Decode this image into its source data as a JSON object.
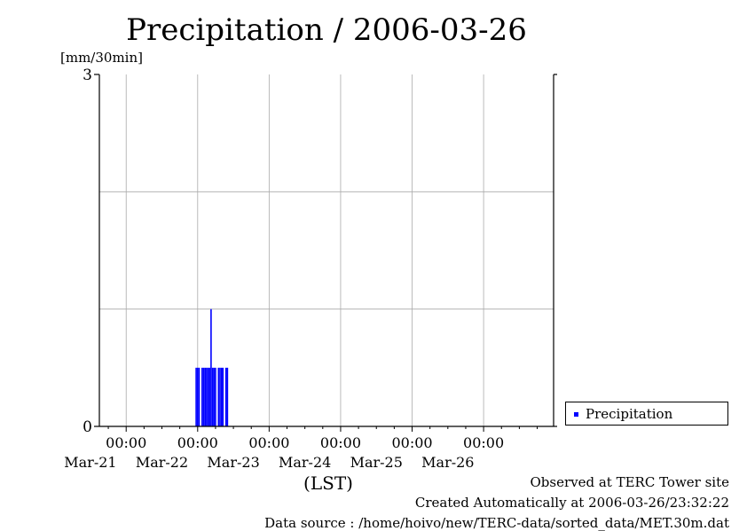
{
  "title": "Precipitation / 2006-03-26",
  "ylabel": "[mm/30min]",
  "xlabel": "(LST)",
  "legend_label": "Precipitation",
  "footer": {
    "observed": "Observed at TERC Tower site",
    "created": "Created Automatically at 2006-03-26/23:32:22",
    "source": "Data source : /home/hoivo/new/TERC-data/sorted_data/MET.30m.dat"
  },
  "colors": {
    "series": "#0000ff",
    "grid": "#aaaaaa",
    "axis": "#000000"
  },
  "chart_data": {
    "type": "bar",
    "title": "Precipitation / 2006-03-26",
    "ylabel": "[mm/30min]",
    "xlabel": "(LST)",
    "ylim": [
      0,
      3
    ],
    "yticks": [
      0,
      3
    ],
    "y_grid": [
      1,
      2
    ],
    "xlim": [
      "2006-03-20 15:00",
      "2006-03-26 23:30"
    ],
    "x_ticks": [
      {
        "time": "2006-03-21 00:00",
        "label_time": "00:00",
        "label_date": "Mar-21"
      },
      {
        "time": "2006-03-22 00:00",
        "label_time": "00:00",
        "label_date": "Mar-22"
      },
      {
        "time": "2006-03-23 00:00",
        "label_time": "00:00",
        "label_date": "Mar-23"
      },
      {
        "time": "2006-03-24 00:00",
        "label_time": "00:00",
        "label_date": "Mar-24"
      },
      {
        "time": "2006-03-25 00:00",
        "label_time": "00:00",
        "label_date": "Mar-25"
      },
      {
        "time": "2006-03-26 00:00",
        "label_time": "00:00",
        "label_date": "Mar-26"
      }
    ],
    "grid": true,
    "legend_position": "right",
    "series": [
      {
        "name": "Precipitation",
        "color": "#0000ff",
        "points": [
          {
            "x": "2006-03-21 23:30",
            "y": 0.5
          },
          {
            "x": "2006-03-22 00:00",
            "y": 0.5
          },
          {
            "x": "2006-03-22 00:30",
            "y": 0.5
          },
          {
            "x": "2006-03-22 01:30",
            "y": 0.5
          },
          {
            "x": "2006-03-22 02:00",
            "y": 0.5
          },
          {
            "x": "2006-03-22 02:30",
            "y": 0.5
          },
          {
            "x": "2006-03-22 03:00",
            "y": 0.5
          },
          {
            "x": "2006-03-22 03:30",
            "y": 0.5
          },
          {
            "x": "2006-03-22 04:00",
            "y": 0.5
          },
          {
            "x": "2006-03-22 04:30",
            "y": 1.0
          },
          {
            "x": "2006-03-22 05:00",
            "y": 0.5
          },
          {
            "x": "2006-03-22 05:30",
            "y": 0.5
          },
          {
            "x": "2006-03-22 06:00",
            "y": 0.5
          },
          {
            "x": "2006-03-22 07:00",
            "y": 0.5
          },
          {
            "x": "2006-03-22 07:30",
            "y": 0.5
          },
          {
            "x": "2006-03-22 08:00",
            "y": 0.5
          },
          {
            "x": "2006-03-22 08:30",
            "y": 0.5
          },
          {
            "x": "2006-03-22 09:30",
            "y": 0.5
          },
          {
            "x": "2006-03-22 10:00",
            "y": 0.5
          }
        ]
      }
    ]
  }
}
